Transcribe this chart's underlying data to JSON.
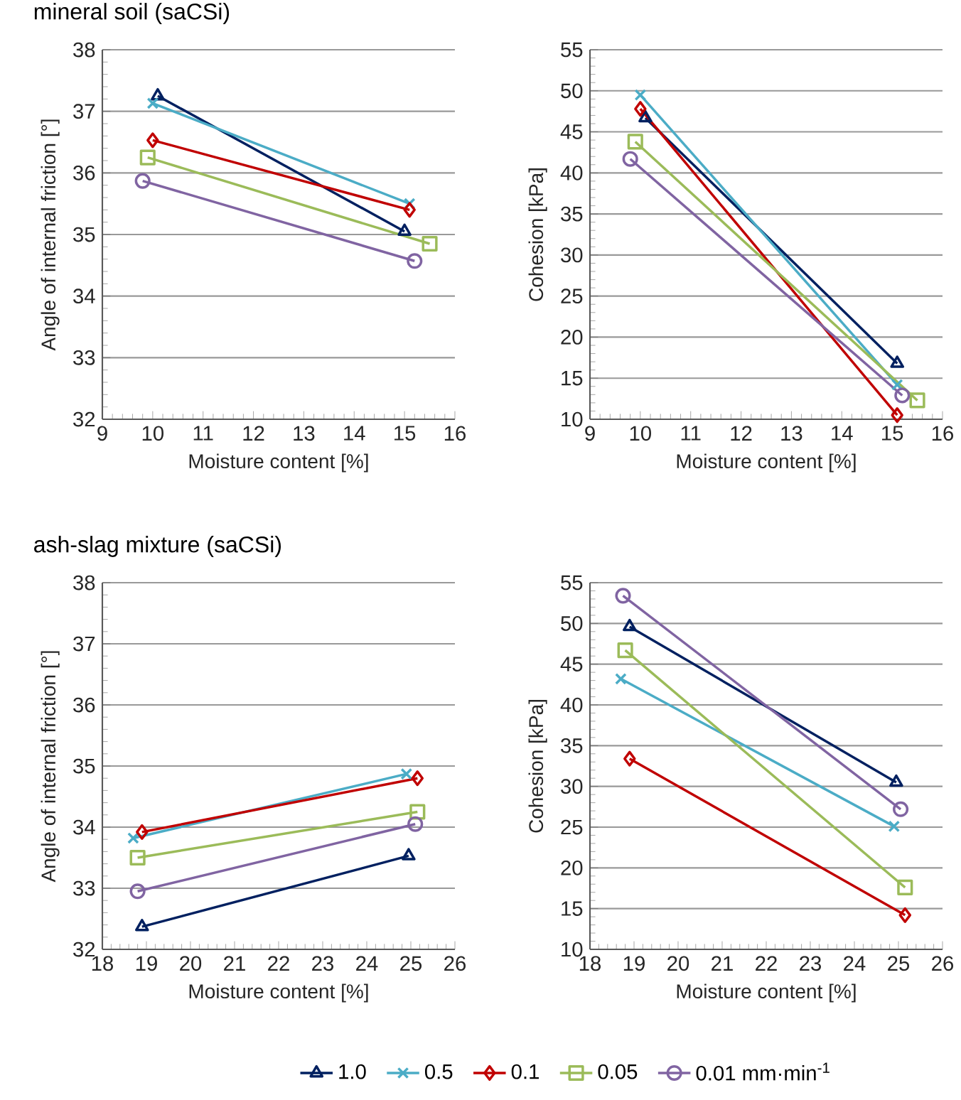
{
  "chart_data": [
    {
      "type": "line",
      "title": "mineral soil (saCSi)",
      "xlabel": "Moisture content [%]",
      "ylabel": "Angle of internal friction [°]",
      "xlim": [
        9,
        16
      ],
      "ylim": [
        32,
        38
      ],
      "xticks": [
        9,
        10,
        11,
        12,
        13,
        14,
        15,
        16
      ],
      "yticks": [
        32,
        33,
        34,
        35,
        36,
        37,
        38
      ],
      "grid": "y",
      "line_style": "solid",
      "series": [
        {
          "color": "#002060",
          "marker": "triangle",
          "x": [
            10.1,
            15.0
          ],
          "values": [
            37.25,
            35.05
          ]
        },
        {
          "color": "#4bacc6",
          "marker": "cross",
          "x": [
            10.0,
            15.1
          ],
          "values": [
            37.13,
            35.5
          ]
        },
        {
          "color": "#c00000",
          "marker": "diamond",
          "x": [
            10.0,
            15.1
          ],
          "values": [
            36.53,
            35.4
          ]
        },
        {
          "color": "#9bbb59",
          "marker": "square",
          "x": [
            9.9,
            15.5
          ],
          "values": [
            36.25,
            34.85
          ]
        },
        {
          "color": "#8064a2",
          "marker": "circle",
          "x": [
            9.8,
            15.2
          ],
          "values": [
            35.87,
            34.57
          ]
        }
      ]
    },
    {
      "type": "line",
      "xlabel": "Moisture content [%]",
      "ylabel": "Cohesion [kPa]",
      "xlim": [
        9,
        16
      ],
      "ylim": [
        10,
        55
      ],
      "xticks": [
        9,
        10,
        11,
        12,
        13,
        14,
        15,
        16
      ],
      "yticks": [
        10,
        15,
        20,
        25,
        30,
        35,
        40,
        45,
        50,
        55
      ],
      "grid": "y",
      "line_style": "solid",
      "series": [
        {
          "color": "#002060",
          "marker": "triangle",
          "x": [
            10.1,
            15.1
          ],
          "values": [
            46.7,
            16.8
          ]
        },
        {
          "color": "#4bacc6",
          "marker": "cross",
          "x": [
            10.0,
            15.1
          ],
          "values": [
            49.5,
            14.2
          ]
        },
        {
          "color": "#c00000",
          "marker": "diamond",
          "x": [
            10.0,
            15.1
          ],
          "values": [
            47.8,
            10.5
          ]
        },
        {
          "color": "#9bbb59",
          "marker": "square",
          "x": [
            9.9,
            15.5
          ],
          "values": [
            43.8,
            12.3
          ]
        },
        {
          "color": "#8064a2",
          "marker": "circle",
          "x": [
            9.8,
            15.2
          ],
          "values": [
            41.7,
            12.9
          ]
        }
      ]
    },
    {
      "type": "line",
      "title": "ash-slag mixture (saCSi)",
      "xlabel": "Moisture content [%]",
      "ylabel": "Angle of internal friction [°]",
      "xlim": [
        18,
        26
      ],
      "ylim": [
        32,
        38
      ],
      "xticks": [
        18,
        19,
        20,
        21,
        22,
        23,
        24,
        25,
        26
      ],
      "yticks": [
        32,
        33,
        34,
        35,
        36,
        37,
        38
      ],
      "grid": "y",
      "line_style": "solid",
      "series": [
        {
          "color": "#002060",
          "marker": "triangle",
          "x": [
            18.9,
            24.95
          ],
          "values": [
            32.37,
            33.53
          ]
        },
        {
          "color": "#4bacc6",
          "marker": "cross",
          "x": [
            18.7,
            24.9
          ],
          "values": [
            33.82,
            34.87
          ]
        },
        {
          "color": "#c00000",
          "marker": "diamond",
          "x": [
            18.9,
            25.15
          ],
          "values": [
            33.92,
            34.8
          ]
        },
        {
          "color": "#9bbb59",
          "marker": "square",
          "x": [
            18.8,
            25.15
          ],
          "values": [
            33.5,
            34.25
          ]
        },
        {
          "color": "#8064a2",
          "marker": "circle",
          "x": [
            18.8,
            25.1
          ],
          "values": [
            32.95,
            34.05
          ]
        }
      ]
    },
    {
      "type": "line",
      "xlabel": "Moisture content [%]",
      "ylabel": "Cohesion [kPa]",
      "xlim": [
        18,
        26
      ],
      "ylim": [
        10,
        55
      ],
      "xticks": [
        18,
        19,
        20,
        21,
        22,
        23,
        24,
        25,
        26
      ],
      "yticks": [
        10,
        15,
        20,
        25,
        30,
        35,
        40,
        45,
        50,
        55
      ],
      "grid": "y",
      "line_style": "solid",
      "legend": "bottom",
      "series": [
        {
          "name": "1.0",
          "color": "#002060",
          "marker": "triangle",
          "x": [
            18.9,
            24.95
          ],
          "values": [
            49.6,
            30.5
          ]
        },
        {
          "name": "0.5",
          "color": "#4bacc6",
          "marker": "cross",
          "x": [
            18.7,
            24.9
          ],
          "values": [
            43.2,
            25.1
          ]
        },
        {
          "name": "0.1",
          "color": "#c00000",
          "marker": "diamond",
          "x": [
            18.9,
            25.15
          ],
          "values": [
            33.4,
            14.2
          ]
        },
        {
          "name": "0.05",
          "color": "#9bbb59",
          "marker": "square",
          "x": [
            18.8,
            25.15
          ],
          "values": [
            46.7,
            17.6
          ]
        },
        {
          "name": "0.01 mm·min$^{-1}$",
          "color": "#8064a2",
          "marker": "circle",
          "x": [
            18.75,
            25.05
          ],
          "values": [
            53.4,
            27.2
          ]
        }
      ]
    }
  ]
}
